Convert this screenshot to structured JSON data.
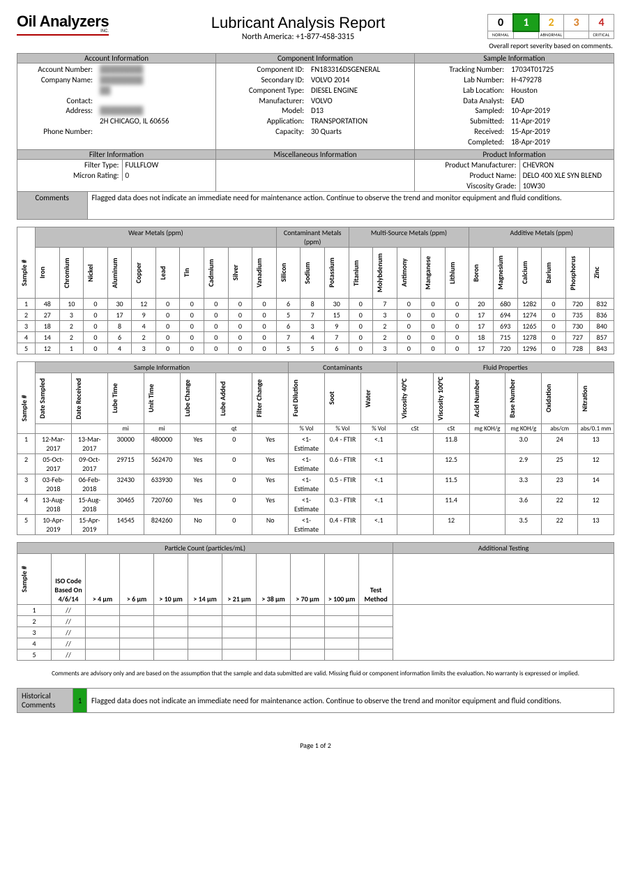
{
  "header": {
    "logo_main": "Oil Analyzers",
    "logo_sub": "INC.",
    "title": "Lubricant Analysis Report",
    "phone": "North America: +1-877-458-3315",
    "severity_caption": "Overall report severity based on comments.",
    "severity_labels_left": "NORMAL",
    "severity_labels_mid": "ABNORMAL",
    "severity_labels_right": "CRITICAL",
    "sev0": "0",
    "sev1": "1",
    "sev2": "2",
    "sev3": "3",
    "sev4": "4"
  },
  "sections": {
    "account": "Account Information",
    "component": "Component Information",
    "sample": "Sample Information",
    "filter": "Filter Information",
    "misc": "Miscellaneous Information",
    "product": "Product Information",
    "comments": "Comments"
  },
  "account": {
    "l_accnum": "Account Number:",
    "v_accnum": "████████",
    "l_company": "Company Name:",
    "v_company": "████████",
    "l_contact": "Contact:",
    "v_contact": "",
    "l_address": "Address:",
    "v_address1": "████████",
    "v_address2": "2H CHICAGO, IL 60656",
    "l_phone": "Phone Number:",
    "v_phone": ""
  },
  "component": {
    "l_id": "Component ID:",
    "v_id": "FN183316DSGENERAL",
    "l_sec": "Secondary ID:",
    "v_sec": "VOLVO 2014",
    "l_type": "Component Type:",
    "v_type": "DIESEL ENGINE",
    "l_mfr": "Manufacturer:",
    "v_mfr": "VOLVO",
    "l_model": "Model:",
    "v_model": "D13",
    "l_app": "Application:",
    "v_app": "TRANSPORTATION",
    "l_cap": "Capacity:",
    "v_cap": "30 Quarts"
  },
  "sampleinfo": {
    "l_track": "Tracking Number:",
    "v_track": "17034T01725",
    "l_lab": "Lab Number:",
    "v_lab": "H-479278",
    "l_loc": "Lab Location:",
    "v_loc": "Houston",
    "l_analyst": "Data Analyst:",
    "v_analyst": "EAD",
    "l_sampled": "Sampled:",
    "v_sampled": "10-Apr-2019",
    "l_submitted": "Submitted:",
    "v_submitted": "11-Apr-2019",
    "l_received": "Received:",
    "v_received": "15-Apr-2019",
    "l_completed": "Completed:",
    "v_completed": "18-Apr-2019"
  },
  "filter": {
    "l_type": "Filter Type:",
    "v_type": "FULLFLOW",
    "l_micron": "Micron Rating:",
    "v_micron": "0"
  },
  "product": {
    "l_mfr": "Product Manufacturer:",
    "v_mfr": "CHEVRON",
    "l_name": "Product Name:",
    "v_name": "DELO 400 XLE SYN BLEND",
    "l_visc": "Viscosity Grade:",
    "v_visc": "10W30"
  },
  "comments_text": "Flagged data does not indicate an immediate need for maintenance action. Continue to observe the trend and monitor equipment and fluid conditions.",
  "metals": {
    "groups": {
      "wear": "Wear Metals (ppm)",
      "contam": "Contaminant Metals (ppm)",
      "multi": "Multi-Source Metals (ppm)",
      "additive": "Additive Metals (ppm)"
    },
    "cols": [
      "Sample #",
      "Iron",
      "Chromium",
      "Nickel",
      "Aluminum",
      "Copper",
      "Lead",
      "Tin",
      "Cadmium",
      "Silver",
      "Vanadium",
      "Silicon",
      "Sodium",
      "Potassium",
      "Titanium",
      "Molybdenum",
      "Antimony",
      "Manganese",
      "Lithium",
      "Boron",
      "Magnesium",
      "Calcium",
      "Barium",
      "Phosphorus",
      "Zinc"
    ],
    "rows": [
      [
        "1",
        "48",
        "10",
        "0",
        "30",
        "12",
        "0",
        "0",
        "0",
        "0",
        "0",
        "6",
        "8",
        "30",
        "0",
        "7",
        "0",
        "0",
        "0",
        "20",
        "680",
        "1282",
        "0",
        "720",
        "832"
      ],
      [
        "2",
        "27",
        "3",
        "0",
        "17",
        "9",
        "0",
        "0",
        "0",
        "0",
        "0",
        "5",
        "7",
        "15",
        "0",
        "3",
        "0",
        "0",
        "0",
        "17",
        "694",
        "1274",
        "0",
        "735",
        "836"
      ],
      [
        "3",
        "18",
        "2",
        "0",
        "8",
        "4",
        "0",
        "0",
        "0",
        "0",
        "0",
        "6",
        "3",
        "9",
        "0",
        "2",
        "0",
        "0",
        "0",
        "17",
        "693",
        "1265",
        "0",
        "730",
        "840"
      ],
      [
        "4",
        "14",
        "2",
        "0",
        "6",
        "2",
        "0",
        "0",
        "0",
        "0",
        "0",
        "7",
        "4",
        "7",
        "0",
        "2",
        "0",
        "0",
        "0",
        "18",
        "715",
        "1278",
        "0",
        "727",
        "857"
      ],
      [
        "5",
        "12",
        "1",
        "0",
        "4",
        "3",
        "0",
        "0",
        "0",
        "0",
        "0",
        "5",
        "5",
        "6",
        "0",
        "3",
        "0",
        "0",
        "0",
        "17",
        "720",
        "1296",
        "0",
        "728",
        "843"
      ]
    ]
  },
  "sample_table": {
    "groups": {
      "info": "Sample Information",
      "contam": "Contaminants",
      "fluid": "Fluid Properties"
    },
    "cols": [
      "Sample #",
      "Date Sampled",
      "Date Received",
      "Lube Time",
      "Unit Time",
      "Lube Change",
      "Lube Added",
      "Filter Change",
      "Fuel Dilution",
      "Soot",
      "Water",
      "Viscosity 40°C",
      "Viscosity 100°C",
      "Acid Number",
      "Base Number",
      "Oxidation",
      "Nitration"
    ],
    "units": [
      "",
      "",
      "",
      "mi",
      "mi",
      "",
      "qt",
      "",
      "% Vol",
      "% Vol",
      "% Vol",
      "cSt",
      "cSt",
      "mg KOH/g",
      "mg KOH/g",
      "abs/cm",
      "abs/0.1 mm"
    ],
    "rows": [
      [
        "1",
        "12-Mar-2017",
        "13-Mar-2017",
        "30000",
        "480000",
        "Yes",
        "0",
        "Yes",
        "<1-Estimate",
        "0.4 - FTIR",
        "<.1",
        "",
        "11.8",
        "",
        "3.0",
        "24",
        "13"
      ],
      [
        "2",
        "05-Oct-2017",
        "09-Oct-2017",
        "29715",
        "562470",
        "Yes",
        "0",
        "Yes",
        "<1-Estimate",
        "0.6 - FTIR",
        "<.1",
        "",
        "12.5",
        "",
        "2.9",
        "25",
        "12"
      ],
      [
        "3",
        "03-Feb-2018",
        "06-Feb-2018",
        "32430",
        "633930",
        "Yes",
        "0",
        "Yes",
        "<1-Estimate",
        "0.5 - FTIR",
        "<.1",
        "",
        "11.5",
        "",
        "3.3",
        "23",
        "14"
      ],
      [
        "4",
        "13-Aug-2018",
        "15-Aug-2018",
        "30465",
        "720760",
        "Yes",
        "0",
        "Yes",
        "<1-Estimate",
        "0.3 - FTIR",
        "<.1",
        "",
        "11.4",
        "",
        "3.6",
        "22",
        "12"
      ],
      [
        "5",
        "10-Apr-2019",
        "15-Apr-2019",
        "14545",
        "824260",
        "No",
        "0",
        "No",
        "<1-Estimate",
        "0.4 - FTIR",
        "<.1",
        "",
        "12",
        "",
        "3.5",
        "22",
        "13"
      ]
    ]
  },
  "particle": {
    "title": "Particle Count (particles/mL)",
    "additional": "Additional Testing",
    "cols": [
      "Sample #",
      "ISO Code Based On 4/6/14",
      "> 4 µm",
      "> 6 µm",
      "> 10 µm",
      "> 14 µm",
      "> 21 µm",
      "> 38 µm",
      "> 70 µm",
      "> 100 µm",
      "Test Method"
    ],
    "rows": [
      [
        "1",
        "//",
        "",
        "",
        "",
        "",
        "",
        "",
        "",
        "",
        ""
      ],
      [
        "2",
        "//",
        "",
        "",
        "",
        "",
        "",
        "",
        "",
        "",
        ""
      ],
      [
        "3",
        "//",
        "",
        "",
        "",
        "",
        "",
        "",
        "",
        "",
        ""
      ],
      [
        "4",
        "//",
        "",
        "",
        "",
        "",
        "",
        "",
        "",
        "",
        ""
      ],
      [
        "5",
        "//",
        "",
        "",
        "",
        "",
        "",
        "",
        "",
        "",
        ""
      ]
    ]
  },
  "disclaimer": "Comments are advisory only and are based on the assumption that the sample and data submitted are valid. Missing fluid or component information limits the evaluation. No warranty is expressed or implied.",
  "historical": {
    "label": "Historical Comments",
    "num": "1",
    "text": "Flagged data does not indicate an immediate need for maintenance action. Continue to observe the trend and monitor equipment and fluid conditions."
  },
  "footer": "Page 1 of 2"
}
